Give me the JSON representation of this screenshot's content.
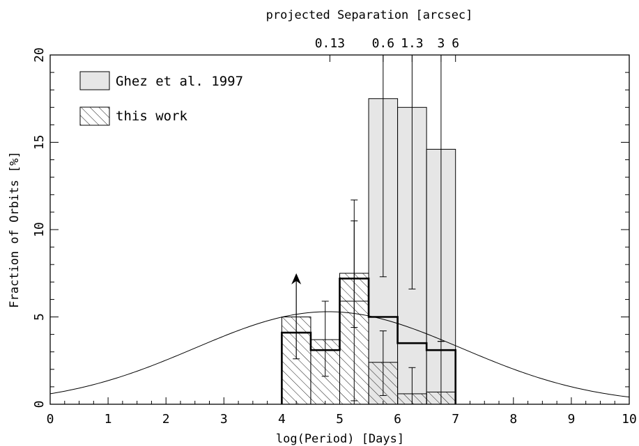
{
  "chart_data": {
    "type": "bar",
    "xlabel": "log(Period) [Days]",
    "ylabel": "Fraction of Orbits [%]",
    "top_axis_label": "projected Separation [arcsec]",
    "xlim": [
      0,
      10
    ],
    "ylim": [
      0,
      20
    ],
    "x_ticks": [
      "0",
      "1",
      "2",
      "3",
      "4",
      "5",
      "6",
      "7",
      "8",
      "9",
      "10"
    ],
    "y_ticks": [
      "0",
      "5",
      "10",
      "15",
      "20"
    ],
    "top_ticks": [
      {
        "label": "0.13",
        "x": 4.83
      },
      {
        "label": "0.6",
        "x": 5.75
      },
      {
        "label": "1.3",
        "x": 6.25
      },
      {
        "label": "3",
        "x": 6.75
      },
      {
        "label": "6",
        "x": 7.0
      }
    ],
    "legend": {
      "position": "top-left",
      "entries": [
        {
          "label": "Ghez et al. 1997",
          "style": "gray-fill"
        },
        {
          "label": "this work",
          "style": "hatched"
        }
      ]
    },
    "series": [
      {
        "name": "Ghez et al. 1997",
        "bins": [
          {
            "x0": 5.5,
            "x1": 6.0,
            "value": 17.5,
            "err_low": 7.3,
            "err_high": 20
          },
          {
            "x0": 6.0,
            "x1": 6.5,
            "value": 17.0,
            "err_low": 6.6,
            "err_high": 20
          },
          {
            "x0": 6.5,
            "x1": 7.0,
            "value": 14.6,
            "err_low": 3.6,
            "err_high": 20
          }
        ]
      },
      {
        "name": "this work",
        "bins": [
          {
            "x0": 4.0,
            "x1": 4.5,
            "value": 5.0,
            "outline": 4.1
          },
          {
            "x0": 4.5,
            "x1": 5.0,
            "value": 3.7,
            "outline": 3.1
          },
          {
            "x0": 5.0,
            "x1": 5.5,
            "value": 7.5,
            "outline": 7.2
          },
          {
            "x0": 5.5,
            "x1": 6.0,
            "value": 2.4,
            "outline": 5.0
          },
          {
            "x0": 6.0,
            "x1": 6.5,
            "value": 0.6,
            "outline": 3.5
          },
          {
            "x0": 6.5,
            "x1": 7.0,
            "value": 0.7,
            "outline": 3.1
          }
        ],
        "inner_hatched": {
          "x0": 5.0,
          "x1": 5.5,
          "value": 5.9
        },
        "errorbars": [
          {
            "x": 4.75,
            "low": 1.6,
            "high": 5.9
          },
          {
            "x": 5.25,
            "low": 4.4,
            "high": 11.7
          },
          {
            "x": 5.25,
            "low": 0.2,
            "high": 10.5
          },
          {
            "x": 5.75,
            "low": 0.5,
            "high": 4.2
          },
          {
            "x": 6.25,
            "low": 0.0,
            "high": 2.1
          },
          {
            "x": 6.75,
            "low": 0.0,
            "high": 3.6
          }
        ],
        "lower_limit_arrow": {
          "x": 4.25,
          "from": 2.6,
          "to": 7.5
        }
      },
      {
        "name": "Gaussian fit",
        "type": "curve",
        "mean": 4.8,
        "sigma": 2.3,
        "peak": 5.3
      }
    ]
  }
}
